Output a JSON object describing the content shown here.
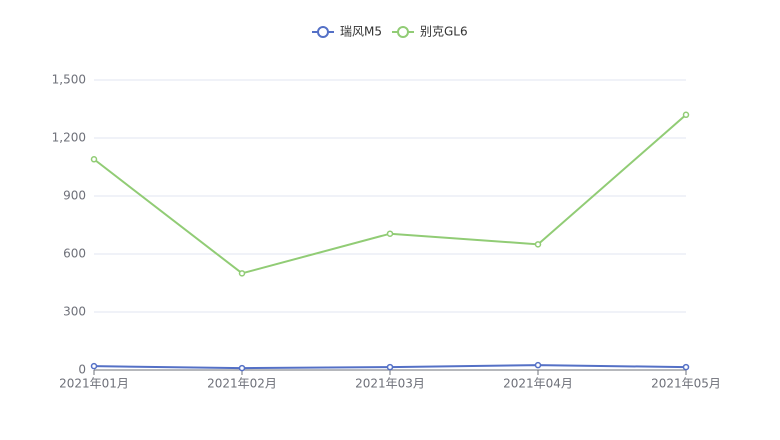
{
  "chart_data": {
    "type": "line",
    "categories": [
      "2021年01月",
      "2021年02月",
      "2021年03月",
      "2021年04月",
      "2021年05月"
    ],
    "series": [
      {
        "name": "瑞风M5",
        "color": "#5470c6",
        "values": [
          20,
          10,
          15,
          25,
          15
        ]
      },
      {
        "name": "别克GL6",
        "color": "#91cc75",
        "values": [
          1090,
          500,
          705,
          650,
          1320
        ]
      }
    ],
    "ylim": [
      0,
      1500
    ],
    "yticks": [
      0,
      300,
      600,
      900,
      {
        "value": 1200,
        "label": "1,200"
      },
      {
        "value": 1500,
        "label": "1,500"
      }
    ],
    "grid": true
  }
}
